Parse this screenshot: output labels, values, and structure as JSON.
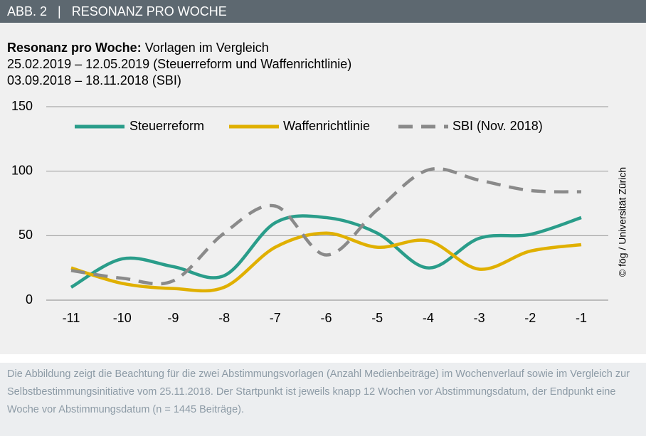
{
  "header": {
    "title": "ABB. 2   |   RESONANZ PRO WOCHE"
  },
  "chart_data": {
    "type": "line",
    "title": "Resonanz pro Woche:",
    "subtitle": "Vorlagen im Vergleich",
    "subtitle_lines": [
      "25.02.2019 – 12.05.2019 (Steuerreform und Waffenrichtlinie)",
      "03.09.2018 – 18.11.2018 (SBI)"
    ],
    "categories": [
      "-11",
      "-10",
      "-9",
      "-8",
      "-7",
      "-6",
      "-5",
      "-4",
      "-3",
      "-2",
      "-1"
    ],
    "series": [
      {
        "name": "Steuerreform",
        "color": "#2a9d8a",
        "dash": false,
        "values": [
          10,
          32,
          26,
          19,
          60,
          64,
          52,
          25,
          48,
          51,
          64
        ]
      },
      {
        "name": "Waffenrichtlinie",
        "color": "#e0b000",
        "dash": false,
        "values": [
          25,
          13,
          9,
          10,
          41,
          52,
          41,
          46,
          24,
          38,
          43
        ]
      },
      {
        "name": "SBI (Nov. 2018)",
        "color": "#8a8a8a",
        "dash": true,
        "values": [
          23,
          17,
          15,
          52,
          73,
          35,
          70,
          101,
          93,
          85,
          84
        ]
      }
    ],
    "ylim": [
      0,
      150
    ],
    "yticks": [
      0,
      50,
      100,
      150
    ],
    "grid": true,
    "legend": "top",
    "annotation": "© fög / Universität  Zürich"
  },
  "caption": "Die Abbildung zeigt die Beachtung für die zwei Abstimmungsvorlagen (Anzahl Medienbeiträge) im Wochenverlauf sowie im Vergleich zur Selbstbestimmungsinitiative vom 25.11.2018. Der Startpunkt ist jeweils knapp 12 Wochen vor Abstimmungsdatum, der Endpunkt eine Woche vor Abstimmungsdatum (n = 1445 Beiträge)."
}
